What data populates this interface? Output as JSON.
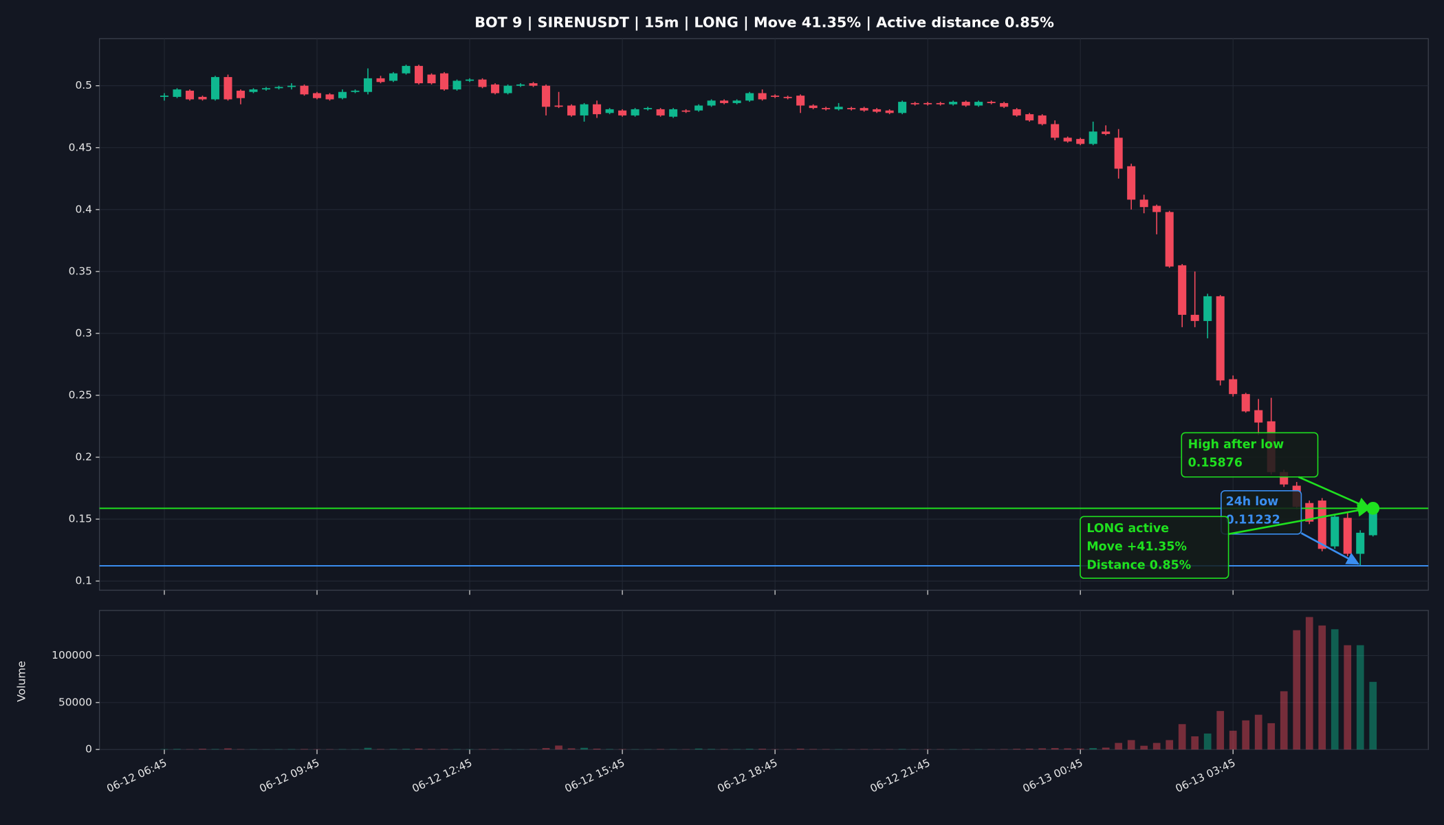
{
  "chart_data": {
    "type": "candlestick",
    "title": "BOT 9 | SIRENUSDT | 15m | LONG | Move 41.35% | Active distance 0.85%",
    "categories": [
      "06-12 06:45",
      null,
      null,
      null,
      null,
      null,
      null,
      null,
      null,
      null,
      null,
      null,
      "06-12 09:45",
      null,
      null,
      null,
      null,
      null,
      null,
      null,
      null,
      null,
      null,
      null,
      "06-12 12:45",
      null,
      null,
      null,
      null,
      null,
      null,
      null,
      null,
      null,
      null,
      null,
      "06-12 15:45",
      null,
      null,
      null,
      null,
      null,
      null,
      null,
      null,
      null,
      null,
      null,
      "06-12 18:45",
      null,
      null,
      null,
      null,
      null,
      null,
      null,
      null,
      null,
      null,
      null,
      "06-12 21:45",
      null,
      null,
      null,
      null,
      null,
      null,
      null,
      null,
      null,
      null,
      null,
      "06-13 00:45",
      null,
      null,
      null,
      null,
      null,
      null,
      null,
      null,
      null,
      null,
      null,
      "06-13 03:45",
      null,
      null,
      null,
      null,
      null,
      null,
      null,
      null,
      null,
      null,
      null
    ],
    "open": [
      0.491,
      0.491,
      0.496,
      0.491,
      0.489,
      0.507,
      0.496,
      0.495,
      0.497,
      0.498,
      0.499,
      0.5,
      0.494,
      0.493,
      0.49,
      0.495,
      0.495,
      0.506,
      0.504,
      0.51,
      0.516,
      0.509,
      0.51,
      0.497,
      0.504,
      0.505,
      0.501,
      0.494,
      0.5,
      0.502,
      0.5,
      0.484,
      0.484,
      0.476,
      0.485,
      0.478,
      0.48,
      0.476,
      0.481,
      0.481,
      0.475,
      0.48,
      0.48,
      0.484,
      0.488,
      0.486,
      0.488,
      0.494,
      0.492,
      0.491,
      0.492,
      0.484,
      0.482,
      0.481,
      0.482,
      0.482,
      0.481,
      0.48,
      0.478,
      0.486,
      0.486,
      0.486,
      0.485,
      0.487,
      0.484,
      0.487,
      0.486,
      0.481,
      0.477,
      0.476,
      0.469,
      0.458,
      0.457,
      0.453,
      0.463,
      0.458,
      0.435,
      0.408,
      0.403,
      0.398,
      0.355,
      0.315,
      0.31,
      0.33,
      0.263,
      0.251,
      0.238,
      0.229,
      0.188,
      0.177,
      0.163,
      0.165,
      0.128,
      0.151,
      0.122,
      0.137
    ],
    "high": [
      0.494,
      0.498,
      0.497,
      0.492,
      0.508,
      0.509,
      0.497,
      0.498,
      0.499,
      0.5,
      0.502,
      0.501,
      0.495,
      0.494,
      0.497,
      0.497,
      0.514,
      0.508,
      0.511,
      0.517,
      0.517,
      0.51,
      0.511,
      0.505,
      0.506,
      0.506,
      0.502,
      0.501,
      0.502,
      0.503,
      0.501,
      0.495,
      0.485,
      0.486,
      0.488,
      0.482,
      0.481,
      0.482,
      0.483,
      0.482,
      0.482,
      0.481,
      0.485,
      0.489,
      0.489,
      0.489,
      0.495,
      0.497,
      0.493,
      0.492,
      0.493,
      0.485,
      0.483,
      0.486,
      0.483,
      0.483,
      0.482,
      0.481,
      0.488,
      0.487,
      0.487,
      0.487,
      0.488,
      0.488,
      0.488,
      0.488,
      0.487,
      0.482,
      0.478,
      0.477,
      0.472,
      0.459,
      0.458,
      0.471,
      0.468,
      0.465,
      0.437,
      0.412,
      0.404,
      0.399,
      0.356,
      0.35,
      0.332,
      0.331,
      0.266,
      0.252,
      0.247,
      0.248,
      0.19,
      0.18,
      0.165,
      0.167,
      0.154,
      0.156,
      0.141,
      0.15876
    ],
    "low": [
      0.488,
      0.49,
      0.488,
      0.488,
      0.488,
      0.488,
      0.485,
      0.494,
      0.496,
      0.497,
      0.497,
      0.492,
      0.489,
      0.488,
      0.489,
      0.494,
      0.493,
      0.502,
      0.503,
      0.509,
      0.501,
      0.501,
      0.496,
      0.496,
      0.503,
      0.498,
      0.493,
      0.493,
      0.499,
      0.499,
      0.476,
      0.482,
      0.475,
      0.471,
      0.474,
      0.477,
      0.475,
      0.475,
      0.48,
      0.475,
      0.474,
      0.478,
      0.479,
      0.483,
      0.485,
      0.485,
      0.487,
      0.488,
      0.49,
      0.489,
      0.478,
      0.481,
      0.48,
      0.48,
      0.48,
      0.479,
      0.478,
      0.477,
      0.477,
      0.484,
      0.484,
      0.484,
      0.484,
      0.483,
      0.483,
      0.485,
      0.482,
      0.475,
      0.471,
      0.468,
      0.456,
      0.454,
      0.452,
      0.452,
      0.46,
      0.425,
      0.4,
      0.397,
      0.38,
      0.353,
      0.305,
      0.305,
      0.296,
      0.258,
      0.249,
      0.236,
      0.218,
      0.186,
      0.176,
      0.158,
      0.146,
      0.124,
      0.126,
      0.12,
      0.11232,
      0.136
    ],
    "close": [
      0.492,
      0.497,
      0.489,
      0.489,
      0.507,
      0.489,
      0.49,
      0.497,
      0.498,
      0.499,
      0.5,
      0.493,
      0.49,
      0.489,
      0.495,
      0.496,
      0.506,
      0.503,
      0.51,
      0.516,
      0.502,
      0.502,
      0.497,
      0.504,
      0.505,
      0.499,
      0.494,
      0.5,
      0.501,
      0.5,
      0.483,
      0.483,
      0.476,
      0.485,
      0.477,
      0.481,
      0.476,
      0.481,
      0.482,
      0.476,
      0.481,
      0.479,
      0.484,
      0.488,
      0.486,
      0.488,
      0.494,
      0.489,
      0.491,
      0.49,
      0.484,
      0.482,
      0.481,
      0.483,
      0.481,
      0.48,
      0.479,
      0.478,
      0.487,
      0.485,
      0.485,
      0.485,
      0.487,
      0.484,
      0.487,
      0.486,
      0.483,
      0.476,
      0.472,
      0.469,
      0.458,
      0.455,
      0.453,
      0.463,
      0.461,
      0.433,
      0.408,
      0.402,
      0.398,
      0.354,
      0.315,
      0.31,
      0.33,
      0.262,
      0.251,
      0.237,
      0.228,
      0.188,
      0.178,
      0.16,
      0.148,
      0.126,
      0.152,
      0.122,
      0.139,
      0.157
    ],
    "up_color": "#0fb88f",
    "down_color": "#f2495c",
    "ylim": [
      0.0926,
      0.538
    ],
    "yticks": [
      0.1,
      0.15,
      0.2,
      0.25,
      0.3,
      0.35,
      0.4,
      0.45,
      0.5
    ],
    "grid": true,
    "annotations": [
      {
        "text": "High after low",
        "value": 0.15876,
        "color": "#1fe01f"
      },
      {
        "text": "24h low",
        "value": 0.11232,
        "color": "#3a8ef0"
      },
      {
        "lines": [
          "LONG active",
          "Move +41.35%",
          "Distance 0.85%"
        ],
        "color": "#1fe01f"
      }
    ],
    "volume": {
      "ylabel": "Volume",
      "values": [
        400,
        600,
        300,
        800,
        500,
        1200,
        400,
        300,
        200,
        300,
        400,
        500,
        300,
        300,
        400,
        300,
        1800,
        500,
        600,
        700,
        1000,
        500,
        600,
        400,
        300,
        400,
        500,
        300,
        200,
        400,
        1500,
        4200,
        1200,
        1800,
        900,
        500,
        400,
        300,
        300,
        500,
        400,
        300,
        1000,
        600,
        500,
        400,
        700,
        800,
        300,
        300,
        900,
        500,
        400,
        300,
        300,
        400,
        300,
        300,
        500,
        300,
        300,
        300,
        300,
        400,
        300,
        300,
        400,
        700,
        900,
        1200,
        1500,
        1200,
        1000,
        1500,
        2000,
        7000,
        10000,
        4000,
        7000,
        10000,
        27000,
        14000,
        17000,
        41000,
        20000,
        31000,
        37000,
        28000,
        62000,
        127000,
        141000,
        132000,
        128000,
        111000,
        111000,
        72000
      ],
      "ylim": [
        0,
        148000
      ],
      "yticks": [
        0,
        50000,
        100000
      ]
    }
  }
}
